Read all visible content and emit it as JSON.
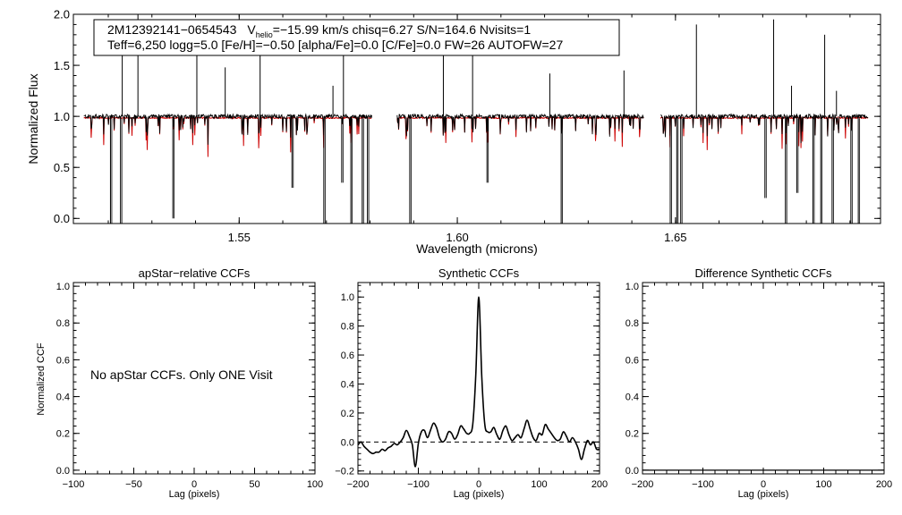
{
  "chart_data": [
    {
      "type": "line",
      "panel": "spectrum",
      "title": "",
      "info_line1": {
        "id": "2M12392141−0654543",
        "v_prefix": "V",
        "v_sub": "helio",
        "v_rest": "=−15.99 km/s  chisq=6.27  S/N=164.6  Nvisits=1"
      },
      "info_line2": "Teff=6,250 logg=5.0 [Fe/H]=−0.50 [alpha/Fe]=0.0 [C/Fe]=0.0 FW=26 AUTOFW=27",
      "xlabel": "Wavelength (microns)",
      "ylabel": "Normalized Flux",
      "xlim": [
        1.512,
        1.697
      ],
      "ylim": [
        -0.05,
        2.0
      ],
      "xticks": [
        1.55,
        1.6,
        1.65
      ],
      "xtick_labels": [
        "1.55",
        "1.60",
        "1.65"
      ],
      "yticks": [
        0.0,
        0.5,
        1.0,
        1.5,
        2.0
      ],
      "ytick_labels": [
        "0.0",
        "0.5",
        "1.0",
        "1.5",
        "2.0"
      ],
      "chip_ranges": [
        [
          1.5144,
          1.5805
        ],
        [
          1.5862,
          1.6428
        ],
        [
          1.6466,
          1.6942
        ]
      ],
      "series": [
        {
          "name": "observed",
          "color": "#000000"
        },
        {
          "name": "model",
          "color": "#cc0000"
        }
      ],
      "spikes_up": [
        [
          1.5232,
          1.95
        ],
        [
          1.5268,
          2.0
        ],
        [
          1.5403,
          1.85
        ],
        [
          1.5468,
          1.48
        ],
        [
          1.5548,
          1.62
        ],
        [
          1.5715,
          1.3
        ],
        [
          1.5739,
          1.98
        ],
        [
          1.5968,
          1.65
        ],
        [
          1.6035,
          1.6
        ],
        [
          1.6212,
          1.42
        ],
        [
          1.6382,
          1.45
        ],
        [
          1.6548,
          1.9
        ],
        [
          1.6725,
          1.95
        ],
        [
          1.6766,
          1.3
        ],
        [
          1.6842,
          1.8
        ],
        [
          1.6869,
          1.25
        ]
      ],
      "spikes_down": [
        [
          1.5205,
          -0.05
        ],
        [
          1.5228,
          -0.05
        ],
        [
          1.5348,
          0.0
        ],
        [
          1.5621,
          0.3
        ],
        [
          1.5694,
          -0.05
        ],
        [
          1.5735,
          0.35
        ],
        [
          1.5756,
          -0.05
        ],
        [
          1.5782,
          -0.05
        ],
        [
          1.5794,
          -0.05
        ],
        [
          1.5891,
          -0.05
        ],
        [
          1.6068,
          0.35
        ],
        [
          1.6238,
          -0.05
        ],
        [
          1.6488,
          -0.05
        ],
        [
          1.6503,
          -0.05
        ],
        [
          1.6512,
          -0.05
        ],
        [
          1.6705,
          0.2
        ],
        [
          1.6752,
          -0.05
        ],
        [
          1.6778,
          0.25
        ],
        [
          1.6815,
          -0.05
        ],
        [
          1.6833,
          -0.05
        ],
        [
          1.6859,
          -0.05
        ],
        [
          1.6902,
          -0.05
        ],
        [
          1.6919,
          -0.05
        ]
      ]
    },
    {
      "type": "line",
      "panel": "apstar",
      "title": "apStar−relative CCFs",
      "message": "No apStar CCFs.  Only ONE Visit",
      "xlabel": "Lag (pixels)",
      "ylabel": "Normalized CCF",
      "xlim": [
        -100,
        100
      ],
      "ylim": [
        -0.02,
        1.02
      ],
      "xticks": [
        -100,
        -50,
        0,
        50,
        100
      ],
      "xtick_labels": [
        "−100",
        "−50",
        "0",
        "50",
        "100"
      ],
      "yticks": [
        0.0,
        0.2,
        0.4,
        0.6,
        0.8,
        1.0
      ],
      "ytick_labels": [
        "0.0",
        "0.2",
        "0.4",
        "0.6",
        "0.8",
        "1.0"
      ],
      "series": []
    },
    {
      "type": "line",
      "panel": "synthetic",
      "title": "Synthetic CCFs",
      "xlabel": "Lag (pixels)",
      "ylabel": "",
      "xlim": [
        -200,
        200
      ],
      "ylim": [
        -0.22,
        1.1
      ],
      "xticks": [
        -200,
        -100,
        0,
        100,
        200
      ],
      "xtick_labels": [
        "−200",
        "−100",
        "0",
        "100",
        "200"
      ],
      "yticks": [
        -0.2,
        0.0,
        0.2,
        0.4,
        0.6,
        0.8,
        1.0
      ],
      "ytick_labels": [
        "−0.2",
        "0.0",
        "0.2",
        "0.4",
        "0.6",
        "0.8",
        "1.0"
      ],
      "reference_line_y": 0.0,
      "series": [
        {
          "name": "ccf",
          "color": "#000000",
          "x": [
            -200,
            -195,
            -190,
            -185,
            -180,
            -175,
            -170,
            -165,
            -160,
            -155,
            -150,
            -145,
            -140,
            -135,
            -130,
            -125,
            -120,
            -115,
            -110,
            -105,
            -100,
            -95,
            -90,
            -85,
            -80,
            -75,
            -70,
            -65,
            -60,
            -55,
            -50,
            -45,
            -40,
            -35,
            -30,
            -25,
            -20,
            -15,
            -10,
            -5,
            0,
            5,
            10,
            15,
            20,
            25,
            30,
            35,
            40,
            45,
            50,
            55,
            60,
            65,
            70,
            75,
            80,
            85,
            90,
            95,
            100,
            105,
            110,
            115,
            120,
            125,
            130,
            135,
            140,
            145,
            150,
            155,
            160,
            165,
            170,
            175,
            180,
            185,
            190,
            195,
            200
          ],
          "values": [
            -0.02,
            0.0,
            -0.03,
            -0.05,
            -0.07,
            -0.08,
            -0.07,
            -0.07,
            -0.05,
            -0.06,
            -0.04,
            -0.03,
            -0.01,
            -0.02,
            0.0,
            0.03,
            0.08,
            0.04,
            -0.02,
            -0.17,
            -0.01,
            0.07,
            0.08,
            0.03,
            0.08,
            0.13,
            0.1,
            0.03,
            0.0,
            0.02,
            0.07,
            0.06,
            0.02,
            0.05,
            0.11,
            0.09,
            0.06,
            0.06,
            0.12,
            0.45,
            1.0,
            0.45,
            0.12,
            0.07,
            0.07,
            0.1,
            0.05,
            0.02,
            0.08,
            0.11,
            0.05,
            0.01,
            0.03,
            0.05,
            0.03,
            0.09,
            0.15,
            0.09,
            0.03,
            0.01,
            0.06,
            0.05,
            0.12,
            0.09,
            0.06,
            0.03,
            0.01,
            0.02,
            0.07,
            0.04,
            0.0,
            0.03,
            0.0,
            -0.05,
            -0.12,
            -0.05,
            0.01,
            -0.02,
            0.0,
            -0.05,
            -0.05
          ]
        }
      ]
    },
    {
      "type": "line",
      "panel": "difference",
      "title": "Difference Synthetic CCFs",
      "xlabel": "Lag (pixels)",
      "ylabel": "",
      "xlim": [
        -200,
        200
      ],
      "ylim": [
        -0.02,
        1.02
      ],
      "xticks": [
        -200,
        -100,
        0,
        100,
        200
      ],
      "xtick_labels": [
        "−200",
        "−100",
        "0",
        "100",
        "200"
      ],
      "yticks": [
        0.0,
        0.2,
        0.4,
        0.6,
        0.8,
        1.0
      ],
      "ytick_labels": [
        "0.0",
        "0.2",
        "0.4",
        "0.6",
        "0.8",
        "1.0"
      ],
      "series": [
        {
          "name": "difference",
          "color": "#000000",
          "x": [
            -200,
            200
          ],
          "values": [
            0.0,
            0.0
          ]
        }
      ]
    }
  ]
}
